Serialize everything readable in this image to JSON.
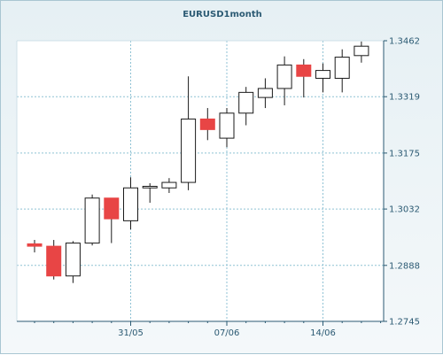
{
  "chart_data": {
    "type": "candlestick",
    "title": "EURUSD1month",
    "x_tick_labels": [
      "31/05",
      "07/06",
      "14/06"
    ],
    "y_ticks": [
      1.2745,
      1.2888,
      1.3032,
      1.3175,
      1.3319,
      1.3462
    ],
    "y_tick_labels": [
      "1.2745",
      "1.2888",
      "1.3032",
      "1.3175",
      "1.3319",
      "1.3462"
    ],
    "ylim": [
      1.2745,
      1.3462
    ],
    "grid": true,
    "colors": {
      "bear_fill": "#e84545",
      "bull_fill": "#ffffff",
      "candle_edge": "#1a1a1a",
      "grid_line": "#8fc2d4",
      "axis_text": "#2b5a73"
    },
    "candles": [
      {
        "open": 1.2943,
        "high": 1.2953,
        "low": 1.2921,
        "close": 1.2937
      },
      {
        "open": 1.2937,
        "high": 1.2953,
        "low": 1.2852,
        "close": 1.2861
      },
      {
        "open": 1.2861,
        "high": 1.295,
        "low": 1.2843,
        "close": 1.2945
      },
      {
        "open": 1.2945,
        "high": 1.3069,
        "low": 1.2939,
        "close": 1.306
      },
      {
        "open": 1.306,
        "high": 1.306,
        "low": 1.2945,
        "close": 1.3007
      },
      {
        "open": 1.3002,
        "high": 1.3113,
        "low": 1.298,
        "close": 1.3086
      },
      {
        "open": 1.3086,
        "high": 1.3098,
        "low": 1.3048,
        "close": 1.309
      },
      {
        "open": 1.3086,
        "high": 1.3111,
        "low": 1.3073,
        "close": 1.31
      },
      {
        "open": 1.31,
        "high": 1.3371,
        "low": 1.308,
        "close": 1.3262
      },
      {
        "open": 1.3262,
        "high": 1.329,
        "low": 1.3208,
        "close": 1.3235
      },
      {
        "open": 1.3213,
        "high": 1.329,
        "low": 1.319,
        "close": 1.3277
      },
      {
        "open": 1.3277,
        "high": 1.3344,
        "low": 1.3246,
        "close": 1.333
      },
      {
        "open": 1.3317,
        "high": 1.3366,
        "low": 1.329,
        "close": 1.334
      },
      {
        "open": 1.334,
        "high": 1.3422,
        "low": 1.3297,
        "close": 1.34
      },
      {
        "open": 1.34,
        "high": 1.3415,
        "low": 1.3317,
        "close": 1.3371
      },
      {
        "open": 1.3366,
        "high": 1.3404,
        "low": 1.333,
        "close": 1.3386
      },
      {
        "open": 1.3366,
        "high": 1.344,
        "low": 1.333,
        "close": 1.342
      },
      {
        "open": 1.3424,
        "high": 1.346,
        "low": 1.3406,
        "close": 1.3448
      }
    ]
  }
}
